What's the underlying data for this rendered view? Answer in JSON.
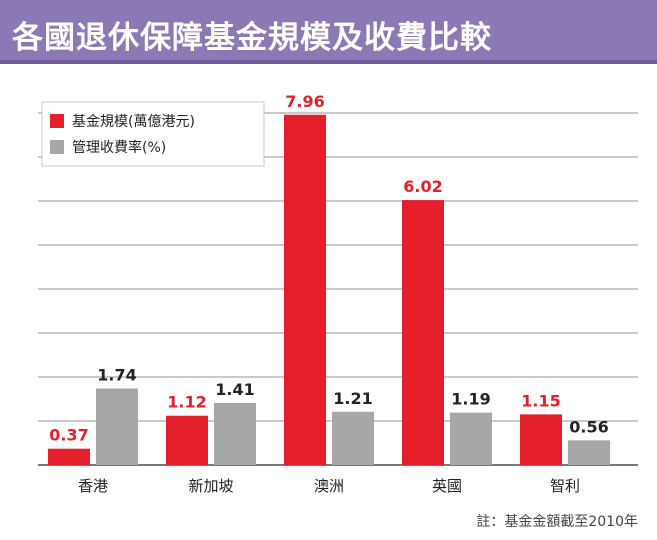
{
  "title": "各國退休保障基金規模及收費比較",
  "chart_data": {
    "type": "bar",
    "categories": [
      "香港",
      "新加坡",
      "澳洲",
      "英國",
      "智利"
    ],
    "series": [
      {
        "name": "基金規模(萬億港元)",
        "values": [
          0.37,
          1.12,
          7.96,
          6.02,
          1.15
        ],
        "color": "#e41f2b",
        "label_color": "#e41f2b"
      },
      {
        "name": "管理收費率(%)",
        "values": [
          1.74,
          1.41,
          1.21,
          1.19,
          0.56
        ],
        "color": "#a7a7a7",
        "label_color": "#222222"
      }
    ],
    "ylim": [
      0,
      8.5
    ],
    "grid": true,
    "legend_position": "top-left",
    "note": "註：基金金額截至2010年"
  }
}
